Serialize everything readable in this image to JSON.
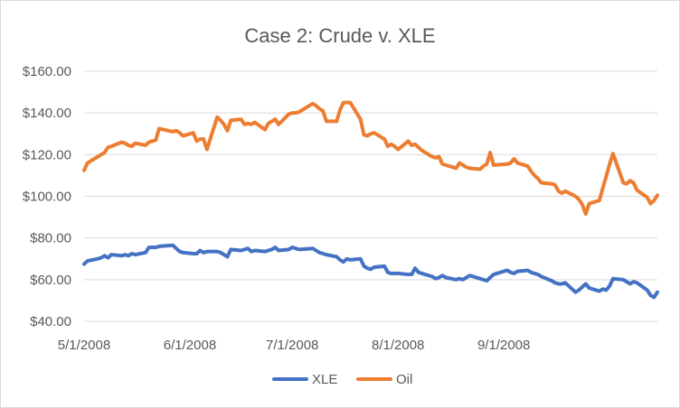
{
  "chart_data": {
    "type": "line",
    "title": "Case 2: Crude v. XLE",
    "xlabel": "",
    "ylabel": "",
    "ylim": [
      40,
      160
    ],
    "y_ticks": [
      "$40.00",
      "$60.00",
      "$80.00",
      "$100.00",
      "$120.00",
      "$140.00",
      "$160.00"
    ],
    "x_ticks": [
      "5/1/2008",
      "6/1/2008",
      "7/1/2008",
      "8/1/2008",
      "9/1/2008"
    ],
    "grid": true,
    "legend_position": "bottom",
    "series": [
      {
        "name": "XLE",
        "color": "#4472C4",
        "points": [
          [
            "5/1/2008",
            67.5
          ],
          [
            "5/2/2008",
            69.0
          ],
          [
            "5/5/2008",
            70.0
          ],
          [
            "5/6/2008",
            70.5
          ],
          [
            "5/7/2008",
            71.5
          ],
          [
            "5/8/2008",
            70.5
          ],
          [
            "5/9/2008",
            72.0
          ],
          [
            "5/12/2008",
            71.5
          ],
          [
            "5/13/2008",
            72.0
          ],
          [
            "5/14/2008",
            71.5
          ],
          [
            "5/15/2008",
            72.5
          ],
          [
            "5/16/2008",
            72.0
          ],
          [
            "5/19/2008",
            73.0
          ],
          [
            "5/20/2008",
            75.5
          ],
          [
            "5/21/2008",
            75.5
          ],
          [
            "5/22/2008",
            75.5
          ],
          [
            "5/23/2008",
            76.0
          ],
          [
            "5/27/2008",
            76.5
          ],
          [
            "5/28/2008",
            75.0
          ],
          [
            "5/29/2008",
            73.5
          ],
          [
            "5/30/2008",
            73.0
          ],
          [
            "6/2/2008",
            72.5
          ],
          [
            "6/3/2008",
            72.5
          ],
          [
            "6/4/2008",
            74.0
          ],
          [
            "6/5/2008",
            73.0
          ],
          [
            "6/6/2008",
            73.5
          ],
          [
            "6/9/2008",
            73.5
          ],
          [
            "6/10/2008",
            73.0
          ],
          [
            "6/11/2008",
            72.0
          ],
          [
            "6/12/2008",
            71.0
          ],
          [
            "6/13/2008",
            74.5
          ],
          [
            "6/16/2008",
            74.0
          ],
          [
            "6/17/2008",
            74.5
          ],
          [
            "6/18/2008",
            75.0
          ],
          [
            "6/19/2008",
            73.5
          ],
          [
            "6/20/2008",
            74.0
          ],
          [
            "6/23/2008",
            73.5
          ],
          [
            "6/24/2008",
            74.0
          ],
          [
            "6/25/2008",
            74.5
          ],
          [
            "6/26/2008",
            75.5
          ],
          [
            "6/27/2008",
            74.0
          ],
          [
            "6/30/2008",
            74.5
          ],
          [
            "7/1/2008",
            75.5
          ],
          [
            "7/2/2008",
            75.0
          ],
          [
            "7/3/2008",
            74.5
          ],
          [
            "7/7/2008",
            75.0
          ],
          [
            "7/8/2008",
            74.0
          ],
          [
            "7/9/2008",
            73.0
          ],
          [
            "7/10/2008",
            72.5
          ],
          [
            "7/11/2008",
            72.0
          ],
          [
            "7/14/2008",
            71.0
          ],
          [
            "7/15/2008",
            69.5
          ],
          [
            "7/16/2008",
            68.5
          ],
          [
            "7/17/2008",
            70.0
          ],
          [
            "7/18/2008",
            69.5
          ],
          [
            "7/21/2008",
            70.0
          ],
          [
            "7/22/2008",
            66.5
          ],
          [
            "7/23/2008",
            65.5
          ],
          [
            "7/24/2008",
            65.0
          ],
          [
            "7/25/2008",
            66.0
          ],
          [
            "7/28/2008",
            66.5
          ],
          [
            "7/29/2008",
            63.5
          ],
          [
            "7/30/2008",
            63.0
          ],
          [
            "7/31/2008",
            63.0
          ],
          [
            "8/1/2008",
            63.0
          ],
          [
            "8/4/2008",
            62.5
          ],
          [
            "8/5/2008",
            62.5
          ],
          [
            "8/6/2008",
            65.5
          ],
          [
            "8/7/2008",
            63.5
          ],
          [
            "8/8/2008",
            63.0
          ],
          [
            "8/11/2008",
            61.5
          ],
          [
            "8/12/2008",
            60.5
          ],
          [
            "8/13/2008",
            61.0
          ],
          [
            "8/14/2008",
            62.0
          ],
          [
            "8/15/2008",
            61.0
          ],
          [
            "8/18/2008",
            60.0
          ],
          [
            "8/19/2008",
            60.5
          ],
          [
            "8/20/2008",
            60.0
          ],
          [
            "8/21/2008",
            61.0
          ],
          [
            "8/22/2008",
            62.0
          ],
          [
            "8/25/2008",
            60.5
          ],
          [
            "8/26/2008",
            60.0
          ],
          [
            "8/27/2008",
            59.5
          ],
          [
            "8/28/2008",
            61.0
          ],
          [
            "8/29/2008",
            62.5
          ],
          [
            "9/2/2008",
            64.5
          ],
          [
            "9/3/2008",
            63.5
          ],
          [
            "9/4/2008",
            63.0
          ],
          [
            "9/5/2008",
            64.0
          ],
          [
            "9/8/2008",
            64.5
          ],
          [
            "9/9/2008",
            63.5
          ],
          [
            "9/10/2008",
            63.0
          ],
          [
            "9/11/2008",
            62.5
          ],
          [
            "9/12/2008",
            61.5
          ],
          [
            "9/15/2008",
            59.5
          ],
          [
            "9/16/2008",
            58.5
          ],
          [
            "9/17/2008",
            58.0
          ],
          [
            "9/18/2008",
            58.0
          ],
          [
            "9/19/2008",
            58.5
          ],
          [
            "9/22/2008",
            54.0
          ],
          [
            "9/23/2008",
            55.0
          ],
          [
            "9/24/2008",
            56.5
          ],
          [
            "9/25/2008",
            58.0
          ],
          [
            "9/26/2008",
            56.0
          ],
          [
            "9/29/2008",
            54.5
          ],
          [
            "9/30/2008",
            55.5
          ],
          [
            "10/1/2008",
            55.0
          ],
          [
            "10/2/2008",
            57.0
          ],
          [
            "10/3/2008",
            60.5
          ],
          [
            "10/6/2008",
            60.0
          ],
          [
            "10/7/2008",
            59.0
          ],
          [
            "10/8/2008",
            58.0
          ],
          [
            "10/9/2008",
            59.0
          ],
          [
            "10/10/2008",
            58.5
          ],
          [
            "10/13/2008",
            55.0
          ],
          [
            "10/14/2008",
            52.5
          ],
          [
            "10/15/2008",
            51.5
          ],
          [
            "10/16/2008",
            54.0
          ]
        ]
      },
      {
        "name": "Oil",
        "color": "#ED7D31",
        "points": [
          [
            "5/1/2008",
            112.5
          ],
          [
            "5/2/2008",
            116.0
          ],
          [
            "5/5/2008",
            119.0
          ],
          [
            "5/6/2008",
            120.0
          ],
          [
            "5/7/2008",
            121.0
          ],
          [
            "5/8/2008",
            123.5
          ],
          [
            "5/9/2008",
            124.0
          ],
          [
            "5/12/2008",
            126.0
          ],
          [
            "5/13/2008",
            125.5
          ],
          [
            "5/14/2008",
            124.5
          ],
          [
            "5/15/2008",
            124.0
          ],
          [
            "5/16/2008",
            125.5
          ],
          [
            "5/19/2008",
            124.5
          ],
          [
            "5/20/2008",
            126.0
          ],
          [
            "5/21/2008",
            126.5
          ],
          [
            "5/22/2008",
            127.0
          ],
          [
            "5/23/2008",
            132.5
          ],
          [
            "5/27/2008",
            131.0
          ],
          [
            "5/28/2008",
            131.5
          ],
          [
            "5/29/2008",
            130.5
          ],
          [
            "5/30/2008",
            129.0
          ],
          [
            "6/2/2008",
            130.5
          ],
          [
            "6/3/2008",
            126.5
          ],
          [
            "6/4/2008",
            127.5
          ],
          [
            "6/5/2008",
            127.5
          ],
          [
            "6/6/2008",
            122.5
          ],
          [
            "6/9/2008",
            138.0
          ],
          [
            "6/10/2008",
            136.5
          ],
          [
            "6/11/2008",
            134.5
          ],
          [
            "6/12/2008",
            131.5
          ],
          [
            "6/13/2008",
            136.5
          ],
          [
            "6/16/2008",
            137.0
          ],
          [
            "6/17/2008",
            134.5
          ],
          [
            "6/18/2008",
            135.0
          ],
          [
            "6/19/2008",
            134.5
          ],
          [
            "6/20/2008",
            135.5
          ],
          [
            "6/23/2008",
            132.0
          ],
          [
            "6/24/2008",
            135.0
          ],
          [
            "6/25/2008",
            136.0
          ],
          [
            "6/26/2008",
            137.0
          ],
          [
            "6/27/2008",
            134.5
          ],
          [
            "6/30/2008",
            139.5
          ],
          [
            "7/1/2008",
            140.0
          ],
          [
            "7/2/2008",
            140.0
          ],
          [
            "7/3/2008",
            140.5
          ],
          [
            "7/7/2008",
            144.5
          ],
          [
            "7/8/2008",
            143.5
          ],
          [
            "7/9/2008",
            142.0
          ],
          [
            "7/10/2008",
            141.0
          ],
          [
            "7/11/2008",
            136.0
          ],
          [
            "7/14/2008",
            136.0
          ],
          [
            "7/15/2008",
            141.5
          ],
          [
            "7/16/2008",
            145.0
          ],
          [
            "7/17/2008",
            145.0
          ],
          [
            "7/18/2008",
            145.0
          ],
          [
            "7/21/2008",
            137.0
          ],
          [
            "7/22/2008",
            129.5
          ],
          [
            "7/23/2008",
            129.0
          ],
          [
            "7/24/2008",
            130.0
          ],
          [
            "7/25/2008",
            130.5
          ],
          [
            "7/28/2008",
            127.5
          ],
          [
            "7/29/2008",
            124.0
          ],
          [
            "7/30/2008",
            125.0
          ],
          [
            "7/31/2008",
            124.0
          ],
          [
            "8/1/2008",
            122.5
          ],
          [
            "8/4/2008",
            126.5
          ],
          [
            "8/5/2008",
            124.5
          ],
          [
            "8/6/2008",
            125.0
          ],
          [
            "8/7/2008",
            123.5
          ],
          [
            "8/8/2008",
            122.0
          ],
          [
            "8/11/2008",
            119.0
          ],
          [
            "8/12/2008",
            118.5
          ],
          [
            "8/13/2008",
            119.0
          ],
          [
            "8/14/2008",
            115.5
          ],
          [
            "8/15/2008",
            115.0
          ],
          [
            "8/18/2008",
            113.5
          ],
          [
            "8/19/2008",
            116.0
          ],
          [
            "8/20/2008",
            115.0
          ],
          [
            "8/21/2008",
            114.0
          ],
          [
            "8/22/2008",
            113.5
          ],
          [
            "8/25/2008",
            113.0
          ],
          [
            "8/26/2008",
            114.5
          ],
          [
            "8/27/2008",
            115.5
          ],
          [
            "8/28/2008",
            121.0
          ],
          [
            "8/29/2008",
            115.0
          ],
          [
            "9/2/2008",
            115.5
          ],
          [
            "9/3/2008",
            116.0
          ],
          [
            "9/4/2008",
            118.0
          ],
          [
            "9/5/2008",
            116.0
          ],
          [
            "9/8/2008",
            114.5
          ],
          [
            "9/9/2008",
            112.0
          ],
          [
            "9/10/2008",
            110.0
          ],
          [
            "9/11/2008",
            108.5
          ],
          [
            "9/12/2008",
            106.5
          ],
          [
            "9/15/2008",
            106.0
          ],
          [
            "9/16/2008",
            105.5
          ],
          [
            "9/17/2008",
            102.5
          ],
          [
            "9/18/2008",
            101.5
          ],
          [
            "9/19/2008",
            102.5
          ],
          [
            "9/22/2008",
            100.0
          ],
          [
            "9/23/2008",
            98.5
          ],
          [
            "9/24/2008",
            96.0
          ],
          [
            "9/25/2008",
            91.5
          ],
          [
            "9/26/2008",
            96.5
          ],
          [
            "9/29/2008",
            98.0
          ],
          [
            "9/30/2008",
            104.0
          ],
          [
            "10/1/2008",
            109.5
          ],
          [
            "10/2/2008",
            115.5
          ],
          [
            "10/3/2008",
            120.5
          ],
          [
            "10/6/2008",
            106.5
          ],
          [
            "10/7/2008",
            106.0
          ],
          [
            "10/8/2008",
            107.5
          ],
          [
            "10/9/2008",
            106.5
          ],
          [
            "10/10/2008",
            103.0
          ],
          [
            "10/13/2008",
            99.5
          ],
          [
            "10/14/2008",
            96.5
          ],
          [
            "10/15/2008",
            98.0
          ],
          [
            "10/16/2008",
            100.5
          ]
        ]
      }
    ]
  }
}
